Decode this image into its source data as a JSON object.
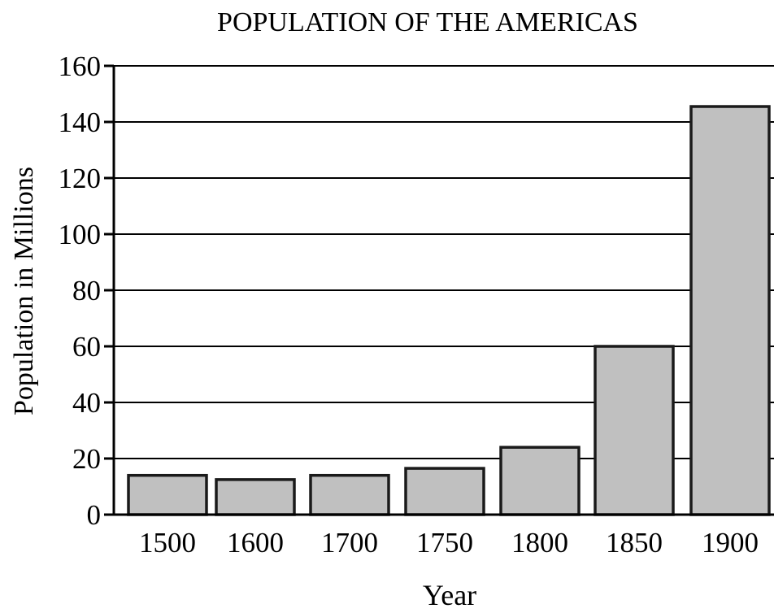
{
  "chart_data": {
    "type": "bar",
    "title": "POPULATION OF THE AMERICAS",
    "xlabel": "Year",
    "ylabel": "Population in Millions",
    "categories": [
      "1500",
      "1600",
      "1700",
      "1750",
      "1800",
      "1850",
      "1900"
    ],
    "values": [
      14,
      12.5,
      14,
      16.5,
      24,
      60,
      145.5
    ],
    "ylim": [
      0,
      160
    ],
    "yticks": [
      0,
      20,
      40,
      60,
      80,
      100,
      120,
      140,
      160
    ],
    "grid": true,
    "colors": {
      "bar_fill": "#c0c0c0",
      "bar_edge": "#1a1a1a",
      "grid": "#000000"
    }
  }
}
